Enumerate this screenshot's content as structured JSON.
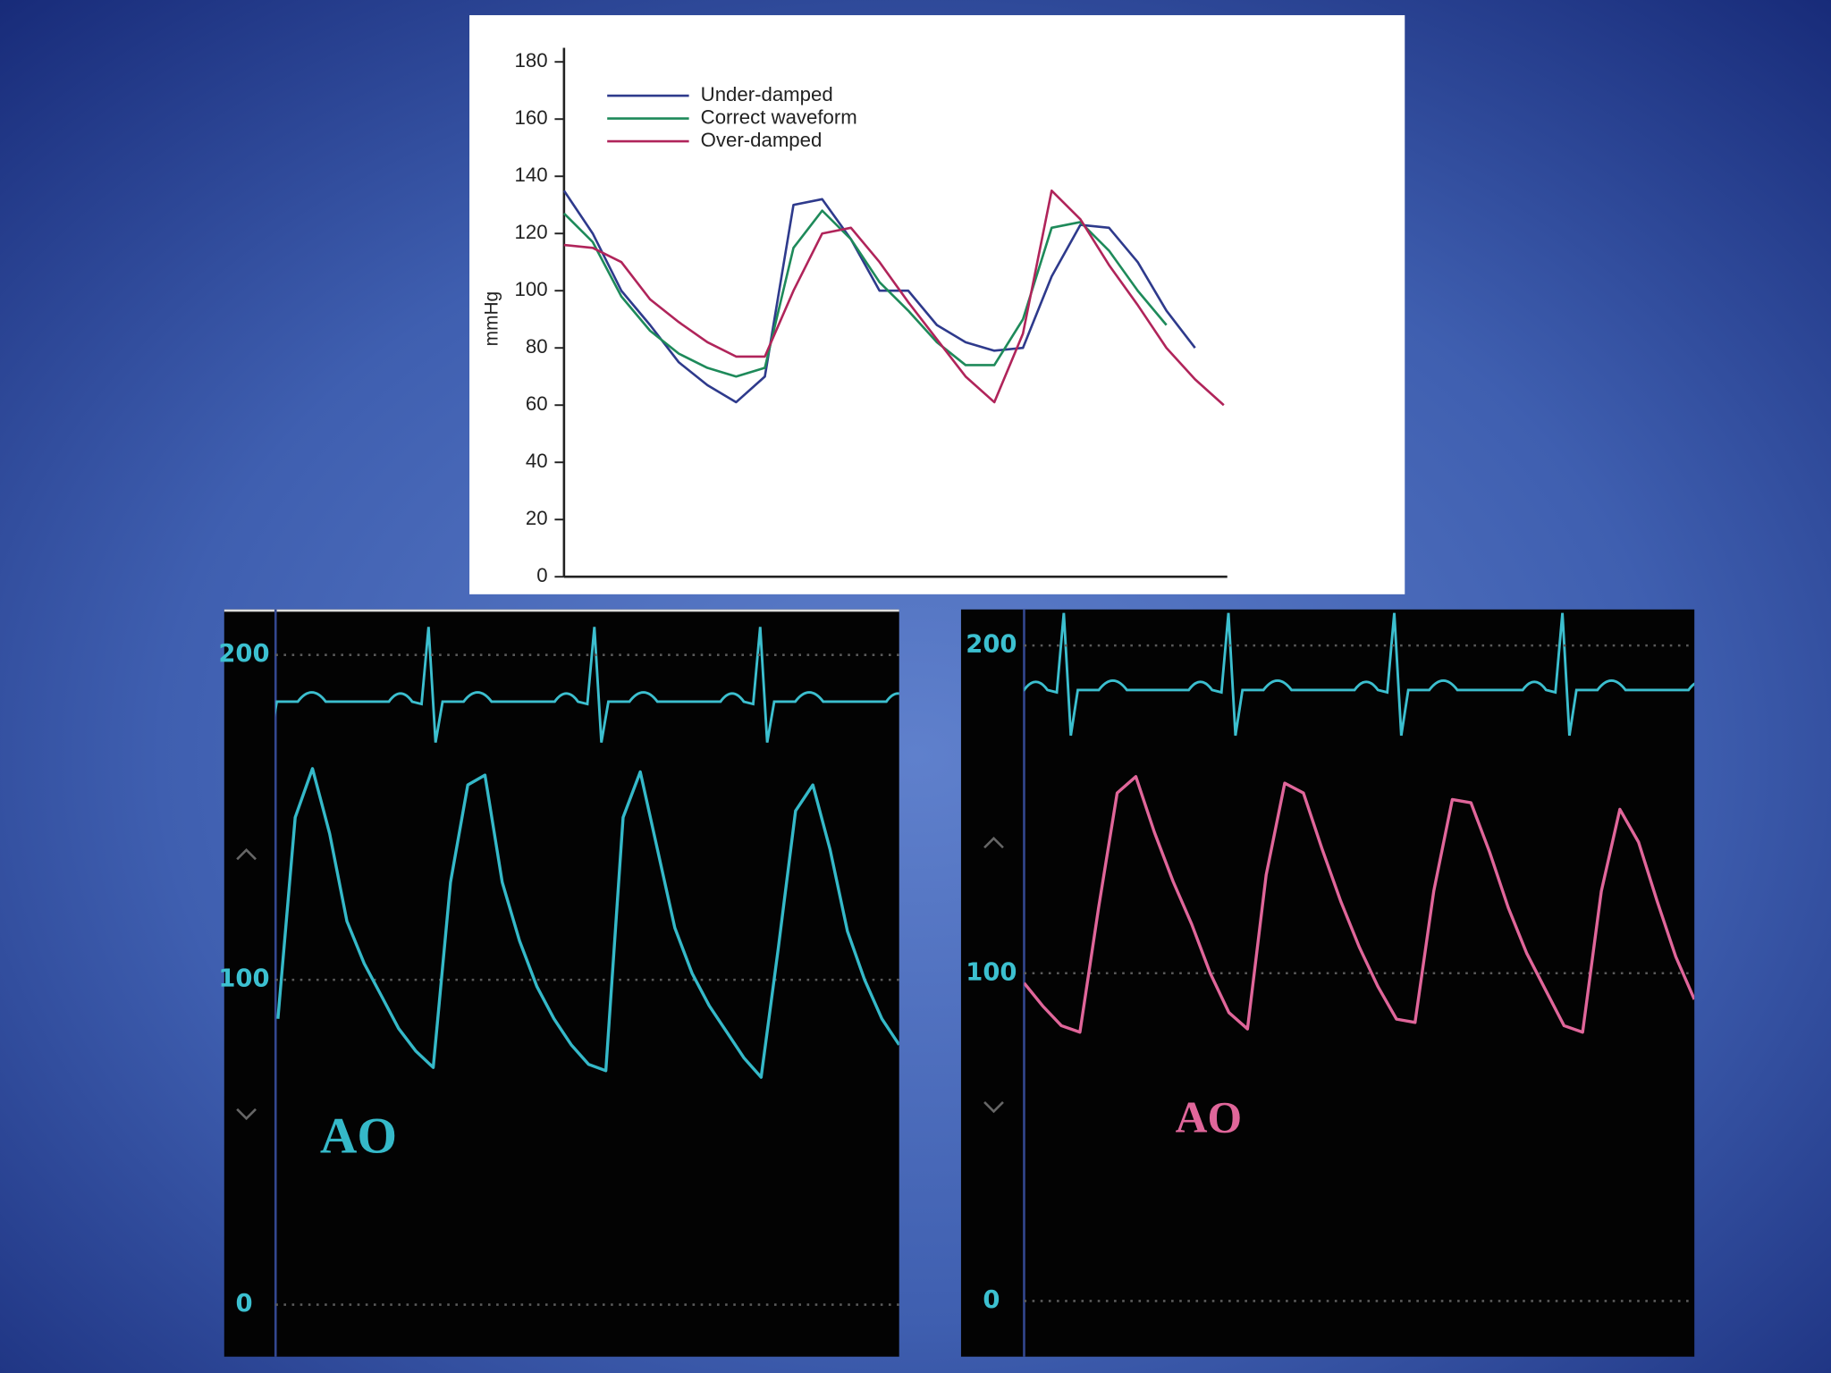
{
  "chart_data": [
    {
      "type": "line",
      "ylabel": "mmHg",
      "legend": "upper left",
      "grid": false,
      "ylim": [
        0,
        180
      ],
      "yticks": [
        0,
        20,
        40,
        60,
        80,
        100,
        120,
        140,
        160,
        180
      ],
      "categories": [
        null,
        null,
        null,
        null,
        null,
        null,
        null,
        null,
        null,
        null,
        null,
        null,
        null,
        null,
        null,
        null,
        null,
        null,
        null,
        null,
        null,
        null,
        null,
        null
      ],
      "series": [
        {
          "name": "Under-damped",
          "color": "#2e3a8c",
          "values": [
            135,
            120,
            100,
            88,
            75,
            67,
            61,
            70,
            130,
            132,
            118,
            100,
            100,
            88,
            82,
            79,
            80,
            105,
            123,
            122,
            110,
            93,
            80,
            null
          ]
        },
        {
          "name": "Correct waveform",
          "color": "#1e8a5a",
          "values": [
            127,
            117,
            98,
            86,
            78,
            73,
            70,
            73,
            115,
            128,
            118,
            103,
            93,
            82,
            74,
            74,
            90,
            122,
            124,
            114,
            100,
            88,
            null,
            null
          ]
        },
        {
          "name": "Over-damped",
          "color": "#b0245a",
          "values": [
            116,
            115,
            110,
            97,
            89,
            82,
            77,
            77,
            100,
            120,
            122,
            110,
            96,
            83,
            70,
            61,
            85,
            135,
            125,
            109,
            95,
            80,
            69,
            60
          ]
        }
      ]
    },
    {
      "type": "line",
      "annotation": "AO",
      "grid": true,
      "ylim": [
        -16,
        214
      ],
      "yticks": [
        0,
        100,
        200
      ],
      "categories": [
        null,
        null,
        null,
        null,
        null,
        null,
        null,
        null,
        null,
        null,
        null,
        null,
        null,
        null,
        null,
        null,
        null,
        null,
        null,
        null,
        null,
        null,
        null,
        null,
        null,
        null,
        null,
        null,
        null,
        null,
        null,
        null,
        null,
        null,
        null,
        null,
        null
      ],
      "series": [
        {
          "color": "#35b9c9",
          "values": [
            88,
            150,
            165,
            145,
            118,
            105,
            95,
            85,
            78,
            73,
            130,
            160,
            163,
            130,
            112,
            98,
            88,
            80,
            74,
            72,
            150,
            164,
            140,
            116,
            102,
            92,
            84,
            76,
            70,
            110,
            152,
            160,
            140,
            115,
            100,
            88,
            80
          ]
        }
      ]
    },
    {
      "type": "line",
      "annotation": "AO",
      "grid": true,
      "ylim": [
        -17,
        211
      ],
      "yticks": [
        0,
        100,
        200
      ],
      "categories": [
        null,
        null,
        null,
        null,
        null,
        null,
        null,
        null,
        null,
        null,
        null,
        null,
        null,
        null,
        null,
        null,
        null,
        null,
        null,
        null,
        null,
        null,
        null,
        null,
        null,
        null,
        null,
        null,
        null,
        null,
        null,
        null,
        null,
        null,
        null,
        null,
        null
      ],
      "series": [
        {
          "color": "#e0669a",
          "values": [
            97,
            90,
            84,
            82,
            120,
            155,
            160,
            143,
            128,
            115,
            100,
            88,
            83,
            130,
            158,
            155,
            138,
            122,
            108,
            96,
            86,
            85,
            125,
            153,
            152,
            137,
            120,
            106,
            95,
            84,
            82,
            125,
            150,
            140,
            122,
            105,
            92
          ]
        }
      ]
    }
  ]
}
